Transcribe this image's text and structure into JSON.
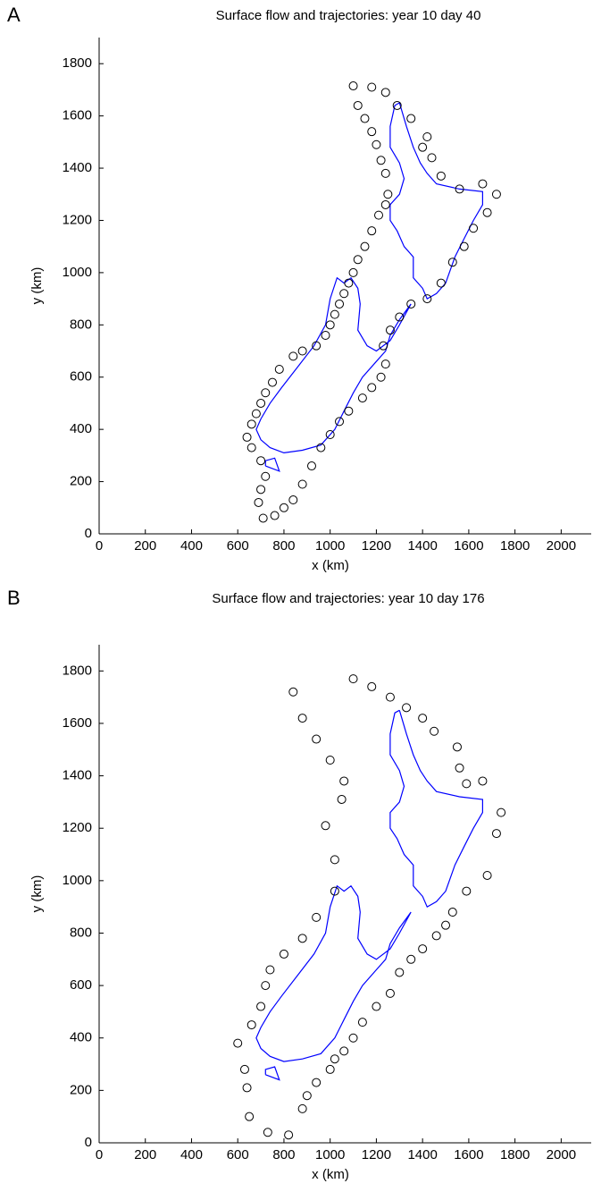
{
  "chart_data": [
    {
      "type": "scatter",
      "label": "A",
      "title": "Surface flow and trajectories: year 10 day 40",
      "x_label": "x (km)",
      "y_label": "y (km)",
      "xlim": [
        0,
        2130
      ],
      "ylim": [
        0,
        1900
      ],
      "xticks": [
        0,
        200,
        400,
        600,
        800,
        1000,
        1200,
        1400,
        1600,
        1800,
        2000
      ],
      "yticks": [
        0,
        200,
        400,
        600,
        800,
        1000,
        1200,
        1400,
        1600,
        1800
      ],
      "series": [
        {
          "mode": "line",
          "color": "#0000ff",
          "x": [
            1300,
            1330,
            1360,
            1390,
            1420,
            1460,
            1560,
            1660,
            1660,
            1620,
            1580,
            1540,
            1500,
            1460,
            1420,
            1400,
            1360,
            1360,
            1320,
            1290,
            1260,
            1260,
            1300,
            1320,
            1300,
            1260,
            1260,
            1280,
            1300
          ],
          "y": [
            1650,
            1560,
            1480,
            1420,
            1380,
            1340,
            1320,
            1310,
            1260,
            1200,
            1130,
            1060,
            960,
            920,
            900,
            940,
            980,
            1060,
            1100,
            1160,
            1200,
            1260,
            1300,
            1360,
            1420,
            1480,
            1560,
            1640,
            1650
          ]
        },
        {
          "mode": "line",
          "color": "#0000ff",
          "x": [
            1350,
            1300,
            1260,
            1240,
            1200,
            1140,
            1100,
            1060,
            1020,
            960,
            880,
            800,
            740,
            700,
            680,
            700,
            740,
            790,
            860,
            930,
            980,
            1000,
            1030,
            1060,
            1090,
            1120,
            1130,
            1120,
            1160,
            1200,
            1260,
            1300,
            1350
          ],
          "y": [
            880,
            820,
            760,
            700,
            660,
            600,
            540,
            470,
            400,
            340,
            320,
            310,
            330,
            360,
            400,
            440,
            500,
            560,
            640,
            720,
            800,
            900,
            980,
            960,
            980,
            940,
            880,
            780,
            720,
            700,
            740,
            800,
            880
          ]
        },
        {
          "mode": "line",
          "color": "#0000ff",
          "x": [
            720,
            780,
            760,
            720,
            720
          ],
          "y": [
            260,
            240,
            290,
            280,
            260
          ]
        },
        {
          "mode": "markers",
          "color": "#000000",
          "x": [
            1100,
            1120,
            1150,
            1180,
            1200,
            1220,
            1240,
            1250,
            1240,
            1210,
            1180,
            1150,
            1120,
            1100,
            1080,
            1060,
            1040,
            1020,
            1000,
            980,
            940,
            880,
            840,
            780,
            750,
            720,
            700,
            680,
            660,
            640,
            660,
            700,
            720,
            700,
            690,
            710,
            760,
            800,
            840,
            880,
            920,
            960,
            1000,
            1040,
            1080,
            1140,
            1180,
            1220,
            1240,
            1230,
            1260,
            1300,
            1350,
            1420,
            1480,
            1530,
            1580,
            1620,
            1680,
            1720,
            1660,
            1560,
            1480,
            1440,
            1400,
            1420,
            1350,
            1290,
            1240,
            1180
          ],
          "y": [
            1715,
            1640,
            1590,
            1540,
            1490,
            1430,
            1380,
            1300,
            1260,
            1220,
            1160,
            1100,
            1050,
            1000,
            960,
            920,
            880,
            840,
            800,
            760,
            720,
            700,
            680,
            630,
            580,
            540,
            500,
            460,
            420,
            370,
            330,
            280,
            220,
            170,
            120,
            60,
            70,
            100,
            130,
            190,
            260,
            330,
            380,
            430,
            470,
            520,
            560,
            600,
            650,
            720,
            780,
            830,
            880,
            900,
            960,
            1040,
            1100,
            1170,
            1230,
            1300,
            1340,
            1320,
            1370,
            1440,
            1480,
            1520,
            1590,
            1640,
            1690,
            1710
          ]
        }
      ]
    },
    {
      "type": "scatter",
      "label": "B",
      "title": "Surface flow and trajectories: year 10 day 176",
      "x_label": "x (km)",
      "y_label": "y (km)",
      "xlim": [
        0,
        2130
      ],
      "ylim": [
        0,
        1900
      ],
      "xticks": [
        0,
        200,
        400,
        600,
        800,
        1000,
        1200,
        1400,
        1600,
        1800,
        2000
      ],
      "yticks": [
        0,
        200,
        400,
        600,
        800,
        1000,
        1200,
        1400,
        1600,
        1800
      ],
      "series": [
        {
          "mode": "line",
          "color": "#0000ff",
          "x": [
            1300,
            1330,
            1360,
            1390,
            1420,
            1460,
            1560,
            1660,
            1660,
            1620,
            1580,
            1540,
            1500,
            1460,
            1420,
            1400,
            1360,
            1360,
            1320,
            1290,
            1260,
            1260,
            1300,
            1320,
            1300,
            1260,
            1260,
            1280,
            1300
          ],
          "y": [
            1650,
            1560,
            1480,
            1420,
            1380,
            1340,
            1320,
            1310,
            1260,
            1200,
            1130,
            1060,
            960,
            920,
            900,
            940,
            980,
            1060,
            1100,
            1160,
            1200,
            1260,
            1300,
            1360,
            1420,
            1480,
            1560,
            1640,
            1650
          ]
        },
        {
          "mode": "line",
          "color": "#0000ff",
          "x": [
            1350,
            1300,
            1260,
            1240,
            1200,
            1140,
            1100,
            1060,
            1020,
            960,
            880,
            800,
            740,
            700,
            680,
            700,
            740,
            790,
            860,
            930,
            980,
            1000,
            1030,
            1060,
            1090,
            1120,
            1130,
            1120,
            1160,
            1200,
            1260,
            1300,
            1350
          ],
          "y": [
            880,
            820,
            760,
            700,
            660,
            600,
            540,
            470,
            400,
            340,
            320,
            310,
            330,
            360,
            400,
            440,
            500,
            560,
            640,
            720,
            800,
            900,
            980,
            960,
            980,
            940,
            880,
            780,
            720,
            700,
            740,
            800,
            880
          ]
        },
        {
          "mode": "line",
          "color": "#0000ff",
          "x": [
            720,
            780,
            760,
            720,
            720
          ],
          "y": [
            260,
            240,
            290,
            280,
            260
          ]
        },
        {
          "mode": "markers",
          "color": "#000000",
          "x": [
            1100,
            1180,
            1260,
            1330,
            1400,
            1450,
            1550,
            1560,
            1590,
            1660,
            1740,
            1720,
            1680,
            1590,
            1530,
            1500,
            1460,
            1400,
            1350,
            1300,
            1260,
            1200,
            1140,
            1100,
            1060,
            1020,
            1000,
            940,
            900,
            880,
            820,
            730,
            650,
            640,
            630,
            600,
            660,
            700,
            720,
            740,
            800,
            880,
            940,
            1020,
            1020,
            980,
            1050,
            1060,
            1000,
            940,
            880,
            840
          ],
          "y": [
            1770,
            1740,
            1700,
            1660,
            1620,
            1570,
            1510,
            1430,
            1370,
            1380,
            1260,
            1180,
            1020,
            960,
            880,
            830,
            790,
            740,
            700,
            650,
            570,
            520,
            460,
            400,
            350,
            320,
            280,
            230,
            180,
            130,
            30,
            40,
            100,
            210,
            280,
            380,
            450,
            520,
            600,
            660,
            720,
            780,
            860,
            960,
            1080,
            1210,
            1310,
            1380,
            1460,
            1540,
            1620,
            1720
          ]
        }
      ]
    }
  ]
}
